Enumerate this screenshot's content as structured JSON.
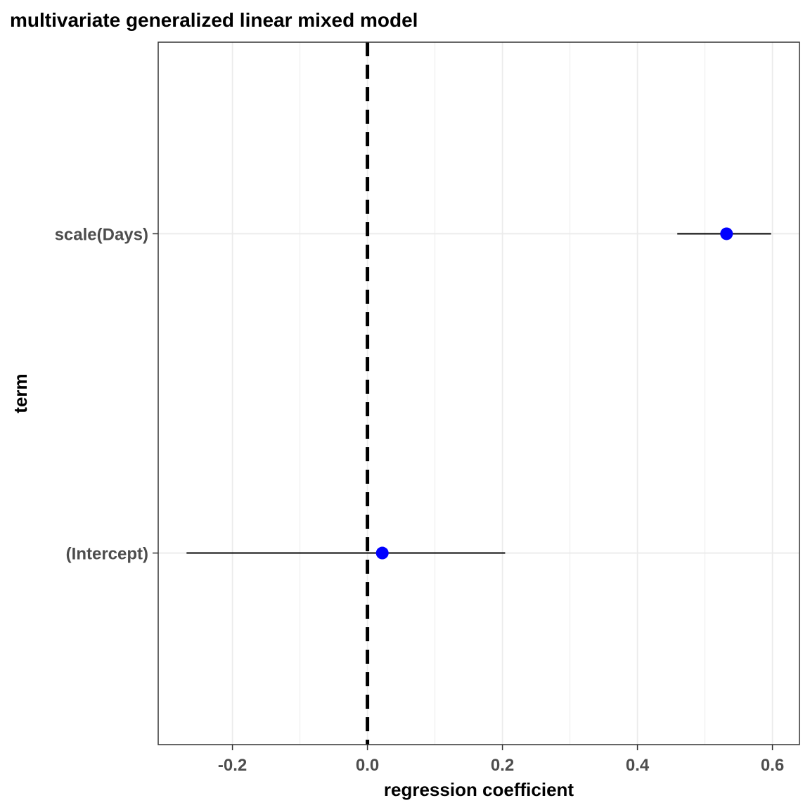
{
  "chart_data": {
    "type": "forest",
    "title": "multivariate generalized linear mixed model",
    "xlabel": "regression coefficient",
    "ylabel": "term",
    "xlim": [
      -0.31,
      0.64
    ],
    "x_ticks": [
      -0.2,
      0.0,
      0.2,
      0.4,
      0.6
    ],
    "x_tick_labels": [
      "-0.2",
      "0.0",
      "0.2",
      "0.4",
      "0.6"
    ],
    "categories": [
      "(Intercept)",
      "scale(Days)"
    ],
    "estimates": [
      0.022,
      0.532
    ],
    "lower": [
      -0.268,
      0.459
    ],
    "upper": [
      0.204,
      0.598
    ],
    "reference_line": 0,
    "grid": true,
    "legend": "none",
    "colors": {
      "point": "#0000ff",
      "interval": "#000000",
      "reference": "#000000",
      "grid": "#ebebeb",
      "panel_border": "#333333"
    }
  }
}
